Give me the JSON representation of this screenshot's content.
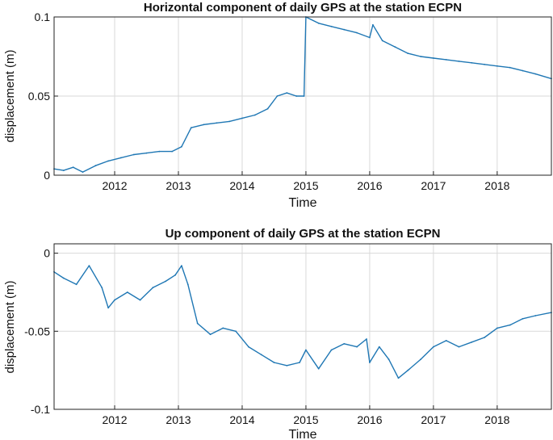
{
  "chart_data": [
    {
      "type": "line",
      "title": "Horizontal component of daily GPS at the station ECPN",
      "xlabel": "Time",
      "ylabel": "displacement (m)",
      "xlim": [
        2011.05,
        2018.85
      ],
      "ylim": [
        0,
        0.1
      ],
      "x_ticks": [
        2012,
        2013,
        2014,
        2015,
        2016,
        2017,
        2018
      ],
      "x_tick_labels": [
        "2012",
        "2013",
        "2014",
        "2015",
        "2016",
        "2017",
        "2018"
      ],
      "y_ticks": [
        0,
        0.05,
        0.1
      ],
      "y_tick_labels": [
        "0",
        "0.05",
        "0.1"
      ],
      "grid": true,
      "line_color": "#1f77b4",
      "series": [
        {
          "x": [
            2011.05,
            2011.2,
            2011.35,
            2011.5,
            2011.7,
            2011.9,
            2012.1,
            2012.3,
            2012.5,
            2012.7,
            2012.9,
            2013.05,
            2013.2,
            2013.4,
            2013.6,
            2013.8,
            2014.0,
            2014.2,
            2014.4,
            2014.55,
            2014.7,
            2014.85,
            2014.97,
            2015.0,
            2015.2,
            2015.4,
            2015.6,
            2015.8,
            2016.0,
            2016.05,
            2016.2,
            2016.4,
            2016.6,
            2016.8,
            2017.0,
            2017.2,
            2017.4,
            2017.6,
            2017.8,
            2018.0,
            2018.2,
            2018.4,
            2018.6,
            2018.85
          ],
          "y": [
            0.004,
            0.003,
            0.005,
            0.002,
            0.006,
            0.009,
            0.011,
            0.013,
            0.014,
            0.015,
            0.015,
            0.018,
            0.03,
            0.032,
            0.033,
            0.034,
            0.036,
            0.038,
            0.042,
            0.05,
            0.052,
            0.05,
            0.05,
            0.1,
            0.096,
            0.094,
            0.092,
            0.09,
            0.087,
            0.095,
            0.085,
            0.081,
            0.077,
            0.075,
            0.074,
            0.073,
            0.072,
            0.071,
            0.07,
            0.069,
            0.068,
            0.066,
            0.064,
            0.061
          ]
        }
      ]
    },
    {
      "type": "line",
      "title": "Up component of daily GPS at the station ECPN",
      "xlabel": "Time",
      "ylabel": "displacement (m)",
      "xlim": [
        2011.05,
        2018.85
      ],
      "ylim": [
        -0.1,
        0.006
      ],
      "x_ticks": [
        2012,
        2013,
        2014,
        2015,
        2016,
        2017,
        2018
      ],
      "x_tick_labels": [
        "2012",
        "2013",
        "2014",
        "2015",
        "2016",
        "2017",
        "2018"
      ],
      "y_ticks": [
        -0.1,
        -0.05,
        0
      ],
      "y_tick_labels": [
        "-0.1",
        "-0.05",
        "0"
      ],
      "grid": true,
      "line_color": "#1f77b4",
      "series": [
        {
          "x": [
            2011.05,
            2011.2,
            2011.4,
            2011.6,
            2011.8,
            2011.9,
            2012.0,
            2012.2,
            2012.4,
            2012.6,
            2012.8,
            2012.95,
            2013.05,
            2013.15,
            2013.3,
            2013.5,
            2013.7,
            2013.9,
            2014.1,
            2014.3,
            2014.5,
            2014.7,
            2014.9,
            2015.0,
            2015.2,
            2015.4,
            2015.6,
            2015.8,
            2015.95,
            2016.0,
            2016.15,
            2016.3,
            2016.45,
            2016.6,
            2016.8,
            2017.0,
            2017.2,
            2017.4,
            2017.6,
            2017.8,
            2018.0,
            2018.2,
            2018.4,
            2018.6,
            2018.85
          ],
          "y": [
            -0.012,
            -0.016,
            -0.02,
            -0.008,
            -0.022,
            -0.035,
            -0.03,
            -0.025,
            -0.03,
            -0.022,
            -0.018,
            -0.014,
            -0.008,
            -0.02,
            -0.045,
            -0.052,
            -0.048,
            -0.05,
            -0.06,
            -0.065,
            -0.07,
            -0.072,
            -0.07,
            -0.062,
            -0.074,
            -0.062,
            -0.058,
            -0.06,
            -0.055,
            -0.07,
            -0.06,
            -0.068,
            -0.08,
            -0.075,
            -0.068,
            -0.06,
            -0.056,
            -0.06,
            -0.057,
            -0.054,
            -0.048,
            -0.046,
            -0.042,
            -0.04,
            -0.038
          ]
        }
      ]
    }
  ]
}
